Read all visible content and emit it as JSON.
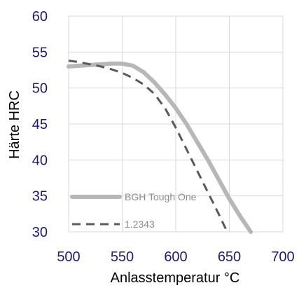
{
  "chart_data": {
    "type": "line",
    "xlabel": "Anlasstemperatur °C",
    "ylabel": "Härte HRC",
    "xlim": [
      500,
      700
    ],
    "ylim": [
      30,
      60
    ],
    "x_ticks": [
      "500",
      "550",
      "600",
      "650",
      "700"
    ],
    "y_ticks": [
      "30",
      "35",
      "40",
      "45",
      "50",
      "55",
      "60"
    ],
    "grid": true,
    "legend_position": "bottom-left",
    "colors": {
      "tick_text": "#1f1a6b",
      "grid": "#d9d9d9",
      "solid_series": "#b7b7b7",
      "dashed_series": "#595959",
      "legend_text": "#8c8c8c"
    },
    "series": [
      {
        "name": "BGH Tough One",
        "style": "solid",
        "x": [
          500,
          520,
          540,
          550,
          560,
          570,
          580,
          590,
          600,
          610,
          620,
          630,
          640,
          650,
          660,
          670
        ],
        "y": [
          53,
          53.2,
          53.4,
          53.4,
          53.1,
          52.2,
          50.8,
          49.1,
          47.2,
          45.0,
          42.5,
          40.0,
          37.3,
          34.6,
          32.2,
          30.0
        ]
      },
      {
        "name": "1.2343",
        "style": "dashed",
        "x": [
          500,
          510,
          520,
          530,
          540,
          550,
          560,
          570,
          580,
          590,
          600,
          610,
          620,
          630,
          640,
          648
        ],
        "y": [
          53.8,
          53.6,
          53.3,
          53.0,
          52.6,
          52.1,
          51.4,
          50.5,
          49.2,
          47.2,
          44.5,
          41.5,
          38.5,
          35.5,
          32.5,
          30.0
        ]
      }
    ]
  }
}
